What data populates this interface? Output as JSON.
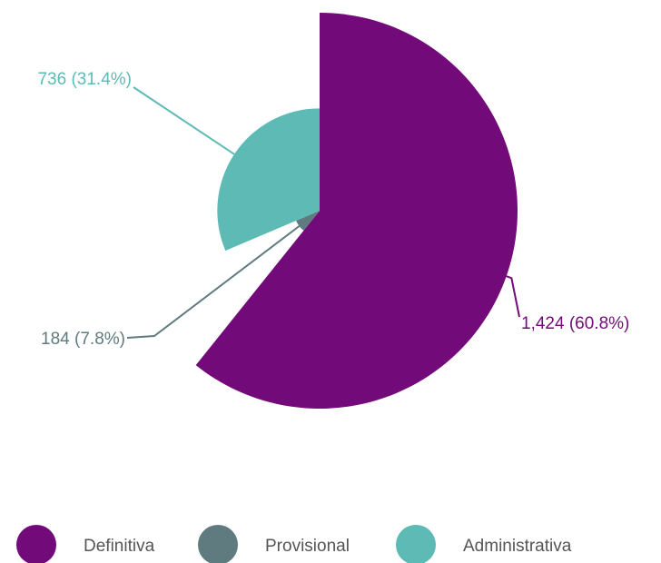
{
  "chart_data": {
    "type": "pie",
    "rose": true,
    "categories": [
      "Definitiva",
      "Provisional",
      "Administrativa"
    ],
    "values": [
      1424,
      184,
      736
    ],
    "value_labels": [
      "1,424 (60.8%)",
      "184 (7.8%)",
      "736 (31.4%)"
    ],
    "colors": [
      "#730a7a",
      "#5f7b80",
      "#5ebab4"
    ],
    "legend": "bottom"
  }
}
